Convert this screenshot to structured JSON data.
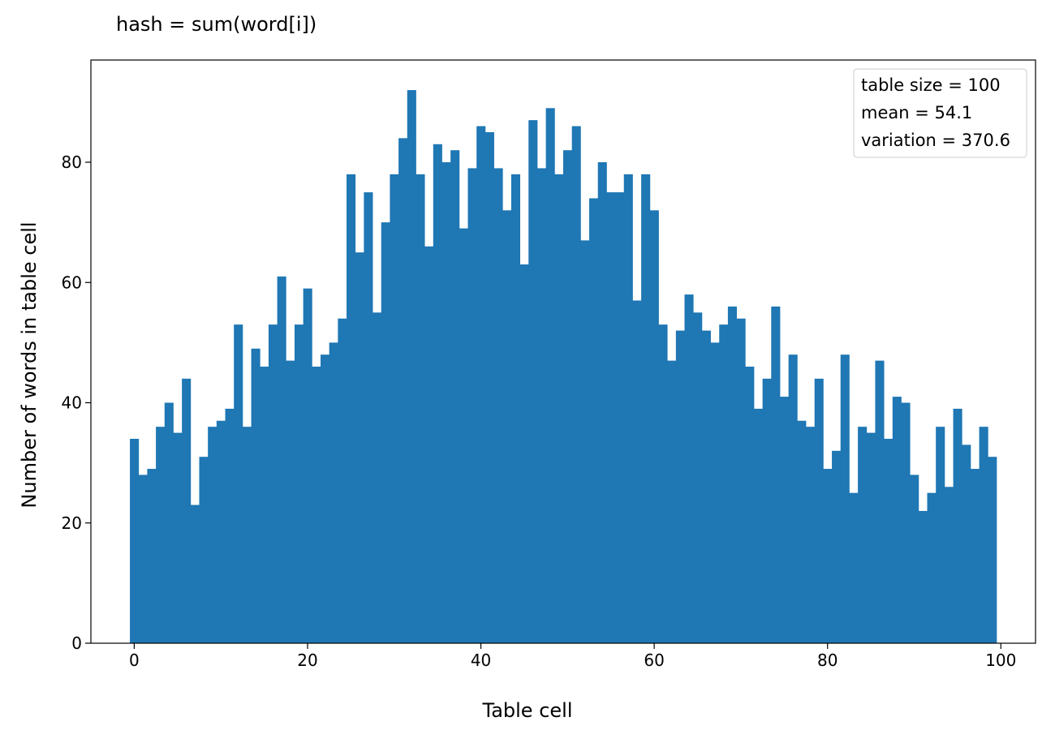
{
  "chart_data": {
    "type": "bar",
    "title": "hash = sum(word[i])",
    "xlabel": "Table cell",
    "ylabel": "Number of words in table cell",
    "xlim": [
      -5,
      104
    ],
    "ylim": [
      0,
      97
    ],
    "x_ticks": [
      0,
      20,
      40,
      60,
      80,
      100
    ],
    "y_ticks": [
      0,
      20,
      40,
      60,
      80
    ],
    "grid": false,
    "legend_placement": "top-right",
    "legend_lines": [
      "table size = 100",
      "mean = 54.1",
      "variation = 370.6"
    ],
    "bar_color": "#1f77b4",
    "categories": [
      0,
      1,
      2,
      3,
      4,
      5,
      6,
      7,
      8,
      9,
      10,
      11,
      12,
      13,
      14,
      15,
      16,
      17,
      18,
      19,
      20,
      21,
      22,
      23,
      24,
      25,
      26,
      27,
      28,
      29,
      30,
      31,
      32,
      33,
      34,
      35,
      36,
      37,
      38,
      39,
      40,
      41,
      42,
      43,
      44,
      45,
      46,
      47,
      48,
      49,
      50,
      51,
      52,
      53,
      54,
      55,
      56,
      57,
      58,
      59,
      60,
      61,
      62,
      63,
      64,
      65,
      66,
      67,
      68,
      69,
      70,
      71,
      72,
      73,
      74,
      75,
      76,
      77,
      78,
      79,
      80,
      81,
      82,
      83,
      84,
      85,
      86,
      87,
      88,
      89,
      90,
      91,
      92,
      93,
      94,
      95,
      96,
      97,
      98,
      99
    ],
    "values": [
      34,
      28,
      29,
      36,
      40,
      35,
      44,
      23,
      31,
      36,
      37,
      39,
      53,
      36,
      49,
      46,
      53,
      61,
      47,
      53,
      59,
      46,
      48,
      50,
      54,
      78,
      65,
      75,
      55,
      70,
      78,
      84,
      92,
      78,
      66,
      83,
      80,
      82,
      69,
      79,
      86,
      85,
      79,
      72,
      78,
      63,
      87,
      79,
      89,
      78,
      82,
      86,
      67,
      74,
      80,
      75,
      75,
      78,
      57,
      78,
      72,
      53,
      47,
      52,
      58,
      55,
      52,
      50,
      53,
      56,
      54,
      46,
      39,
      44,
      56,
      41,
      48,
      37,
      36,
      44,
      29,
      32,
      48,
      25,
      36,
      35,
      47,
      34,
      41,
      40,
      28,
      22,
      25,
      36,
      26,
      39,
      33,
      29,
      36,
      31
    ]
  }
}
